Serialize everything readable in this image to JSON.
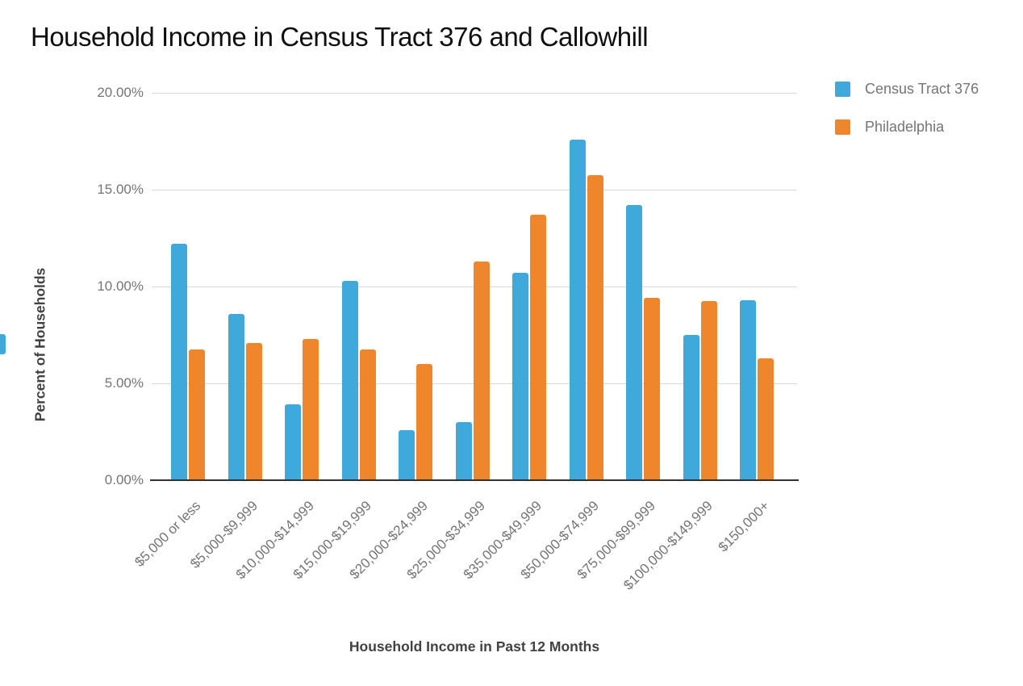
{
  "page": {
    "title": "Household Income in Census Tract 376 and Callowhill"
  },
  "colors": {
    "series_blue": "#3FA9DC",
    "series_orange": "#F0862C",
    "gridline": "#d9d9d9",
    "axis_line": "#333333",
    "tick_text": "#757575",
    "axis_title_text": "#424242",
    "title_text": "#0f0f0f",
    "edge_tab": "#3FA9DC"
  },
  "chart_data": {
    "type": "bar",
    "title": "Household Income in Census Tract 376 and Callowhill",
    "xlabel": "Household Income in Past 12 Months",
    "ylabel": "Percent of Households",
    "ylim": [
      0,
      20
    ],
    "grid": true,
    "legend_position": "top-right",
    "yticks": [
      {
        "value": 0,
        "label": "0.00%"
      },
      {
        "value": 5,
        "label": "5.00%"
      },
      {
        "value": 10,
        "label": "10.00%"
      },
      {
        "value": 15,
        "label": "15.00%"
      },
      {
        "value": 20,
        "label": "20.00%"
      }
    ],
    "categories": [
      "$5,000 or less",
      "$5,000-$9,999",
      "$10,000-$14,999",
      "$15,000-$19,999",
      "$20,000-$24,999",
      "$25,000-$34,999",
      "$35,000-$49,999",
      "$50,000-$74,999",
      "$75,000-$99,999",
      "$100,000-$149,999",
      "$150,000+"
    ],
    "series": [
      {
        "name": "Census Tract 376",
        "color": "#3FA9DC",
        "values": [
          12.2,
          8.6,
          3.9,
          10.3,
          2.6,
          3.0,
          10.7,
          17.6,
          14.2,
          7.5,
          9.3
        ]
      },
      {
        "name": "Philadelphia",
        "color": "#F0862C",
        "values": [
          6.75,
          7.1,
          7.3,
          6.75,
          6.0,
          11.3,
          13.7,
          15.75,
          9.4,
          9.25,
          6.3
        ]
      }
    ]
  }
}
